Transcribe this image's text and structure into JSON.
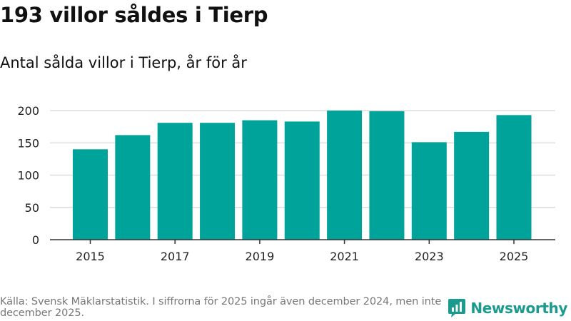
{
  "title": "193 villor såldes i Tierp",
  "subtitle": "Antal sålda villor i Tierp, år för år",
  "footnote": "Källa: Svensk Mäklarstatistik. I siffrorna för 2025 ingår även december 2024, men inte december 2025.",
  "brand": {
    "name": "Newsworthy",
    "icon": "newsworthy-logo-icon",
    "color": "#1a9b8e"
  },
  "colors": {
    "bar": "#00a39a",
    "grid": "#dddddd",
    "axis": "#333333"
  },
  "chart_data": {
    "type": "bar",
    "title": "Antal sålda villor i Tierp, år för år",
    "xlabel": "",
    "ylabel": "",
    "categories": [
      "2015",
      "2016",
      "2017",
      "2018",
      "2019",
      "2020",
      "2021",
      "2022",
      "2023",
      "2024",
      "2025"
    ],
    "values": [
      140,
      162,
      181,
      181,
      185,
      183,
      200,
      199,
      151,
      167,
      193
    ],
    "x_tick_labels": [
      "2015",
      "2017",
      "2019",
      "2021",
      "2023",
      "2025"
    ],
    "ylim": [
      0,
      200
    ],
    "y_ticks": [
      0,
      50,
      100,
      150,
      200
    ],
    "grid": true,
    "legend": "none"
  }
}
